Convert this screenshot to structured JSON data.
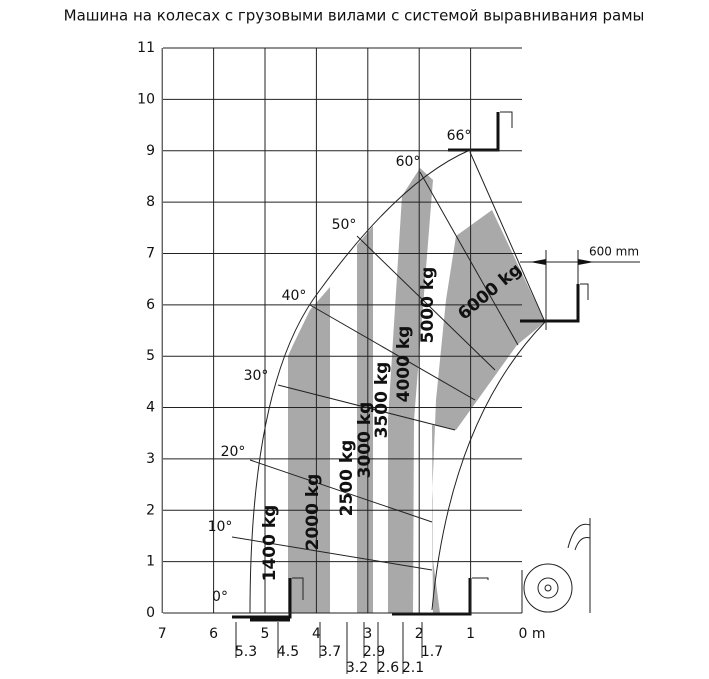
{
  "title": "Машина на колесах с грузовыми вилами с системой выравнивания рамы",
  "y_axis": {
    "labels": [
      "0",
      "1",
      "2",
      "3",
      "4",
      "5",
      "6",
      "7",
      "8",
      "9",
      "10",
      "11"
    ]
  },
  "x_axis": {
    "labels": [
      "7",
      "6",
      "5",
      "4",
      "3",
      "2",
      "1",
      "0 m"
    ],
    "sub_labels": [
      "5.3",
      "4.5",
      "3.7",
      "3.2",
      "2.9",
      "2.6",
      "2.1",
      "1.7"
    ]
  },
  "angles": [
    "0°",
    "10°",
    "20°",
    "30°",
    "40°",
    "50°",
    "60°",
    "66°"
  ],
  "loads": [
    "1400 kg",
    "2000 kg",
    "2500 kg",
    "3000 kg",
    "3500 kg",
    "4000 kg",
    "5000 kg",
    "6000 kg"
  ],
  "dimension": "600 mm"
}
